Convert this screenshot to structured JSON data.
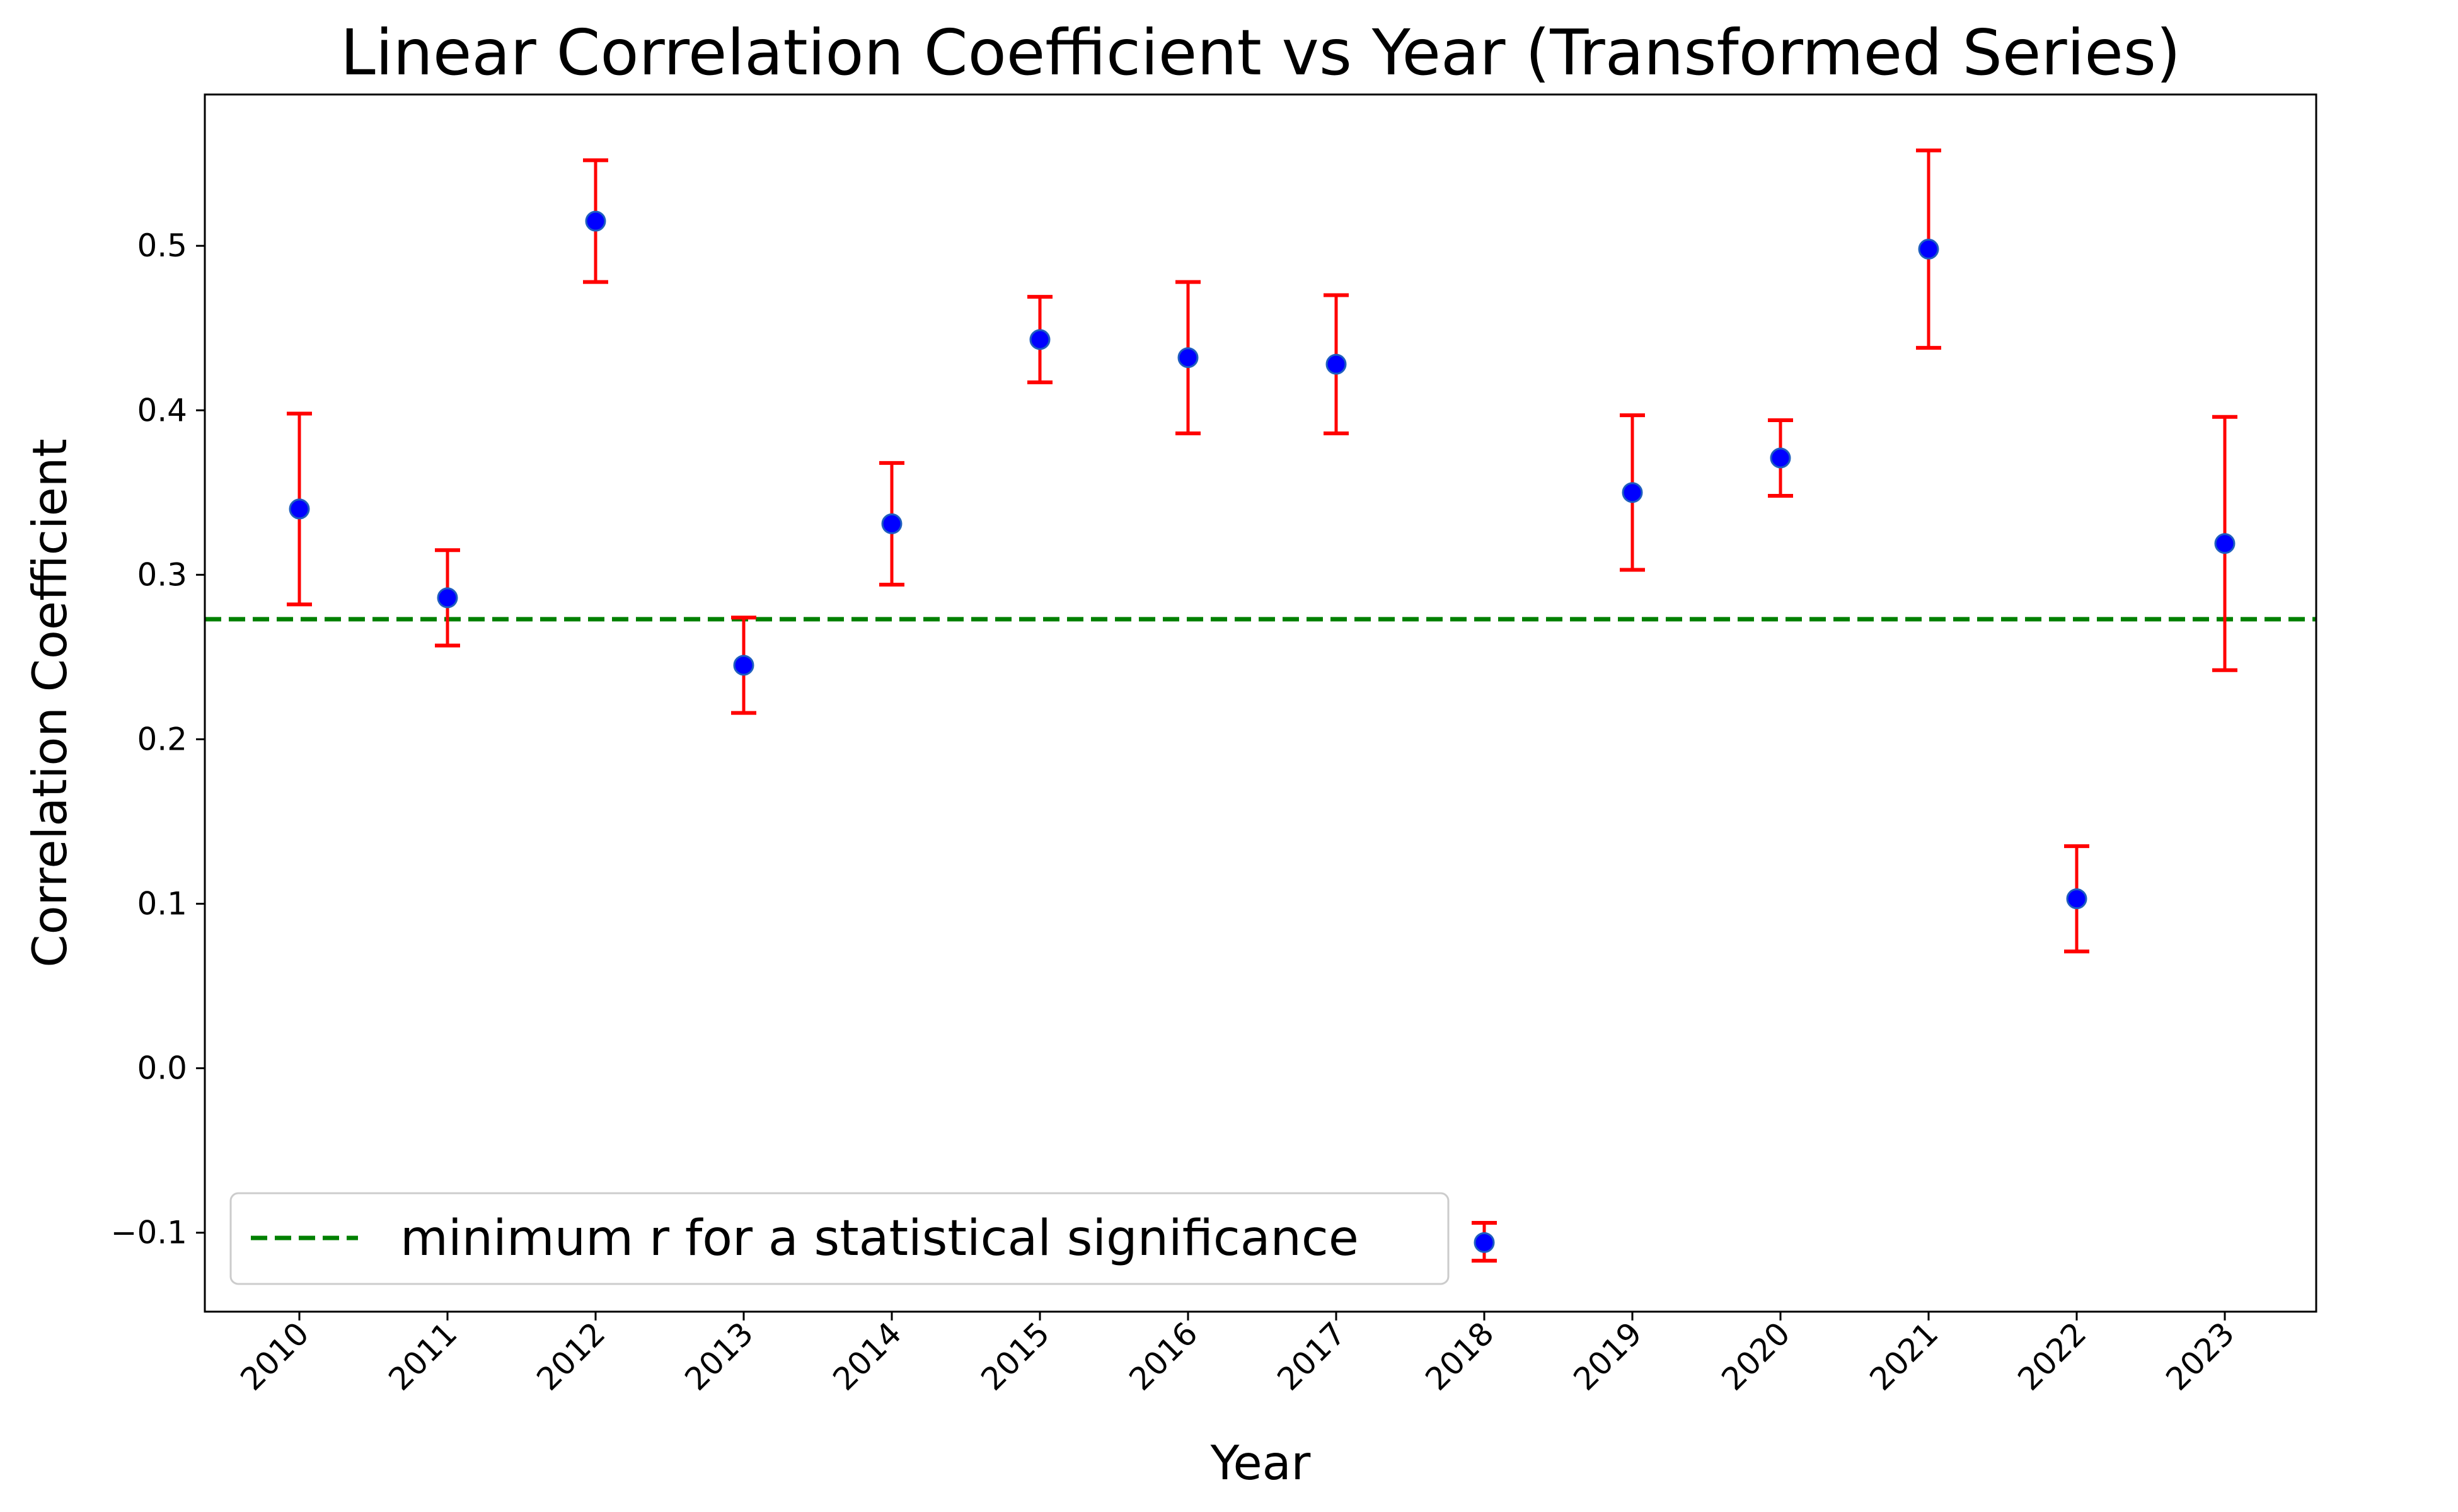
{
  "chart_data": {
    "type": "scatter",
    "title": "Linear Correlation Coefficient vs Year (Transformed Series)",
    "xlabel": "Year",
    "ylabel": "Correlation Coefficient",
    "categories": [
      "2010",
      "2011",
      "2012",
      "2013",
      "2014",
      "2015",
      "2016",
      "2017",
      "2018",
      "2019",
      "2020",
      "2021",
      "2022",
      "2023"
    ],
    "series": [
      {
        "values": [
          0.34,
          0.286,
          0.515,
          0.245,
          0.331,
          0.443,
          0.432,
          0.428,
          -0.106,
          0.35,
          0.371,
          0.498,
          0.103,
          0.319
        ],
        "err_low": [
          0.282,
          0.257,
          0.478,
          0.216,
          0.294,
          0.417,
          0.386,
          0.386,
          -0.117,
          0.303,
          0.348,
          0.438,
          0.071,
          0.242
        ],
        "err_high": [
          0.398,
          0.315,
          0.552,
          0.274,
          0.368,
          0.469,
          0.478,
          0.47,
          -0.094,
          0.397,
          0.394,
          0.558,
          0.135,
          0.396
        ],
        "marker_color": "#0000ff",
        "marker_edge_color": "#1f5fbf",
        "error_color": "#ff0000"
      }
    ],
    "reference_line": {
      "label": "minimum r for a statistical significance",
      "value": 0.273,
      "color": "#008000",
      "style": "dashed"
    },
    "ylim": [
      -0.148,
      0.592
    ],
    "yticks": [
      -0.1,
      0.0,
      0.1,
      0.2,
      0.3,
      0.4,
      0.5
    ],
    "ytick_labels": [
      "−0.1",
      "0.0",
      "0.1",
      "0.2",
      "0.3",
      "0.4",
      "0.5"
    ],
    "grid": false,
    "legend_position": "lower-left"
  }
}
